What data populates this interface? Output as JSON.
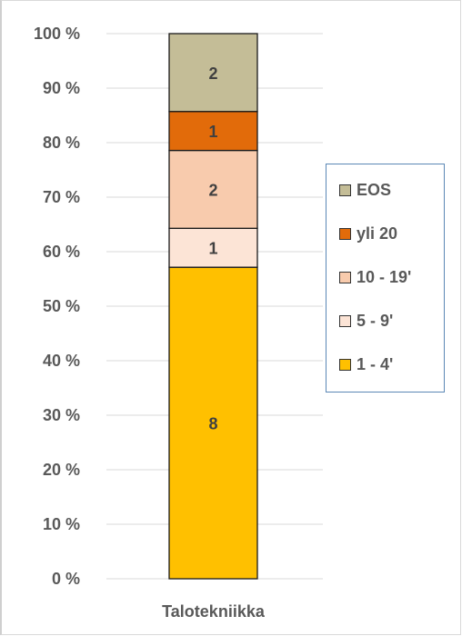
{
  "chart_data": {
    "type": "bar",
    "stacked": true,
    "percent_scale": true,
    "categories": [
      "Talotekniikka"
    ],
    "ylim": [
      0,
      100
    ],
    "y_ticks": [
      "0 %",
      "10 %",
      "20 %",
      "30 %",
      "40 %",
      "50 %",
      "60 %",
      "70 %",
      "80 %",
      "90 %",
      "100 %"
    ],
    "grid": true,
    "legend_position": "right",
    "series": [
      {
        "name": "1 - 4'",
        "values": [
          8
        ],
        "color": "#ffc000"
      },
      {
        "name": "5 - 9'",
        "values": [
          1
        ],
        "color": "#fce4d6"
      },
      {
        "name": "10 - 19'",
        "values": [
          2
        ],
        "color": "#f8cbad"
      },
      {
        "name": "yli 20",
        "values": [
          1
        ],
        "color": "#e26b0a"
      },
      {
        "name": "EOS",
        "values": [
          2
        ],
        "color": "#c4bd97"
      }
    ],
    "legend_order": [
      "EOS",
      "yli 20",
      "10 - 19'",
      "5 - 9'",
      "1 - 4'"
    ]
  }
}
